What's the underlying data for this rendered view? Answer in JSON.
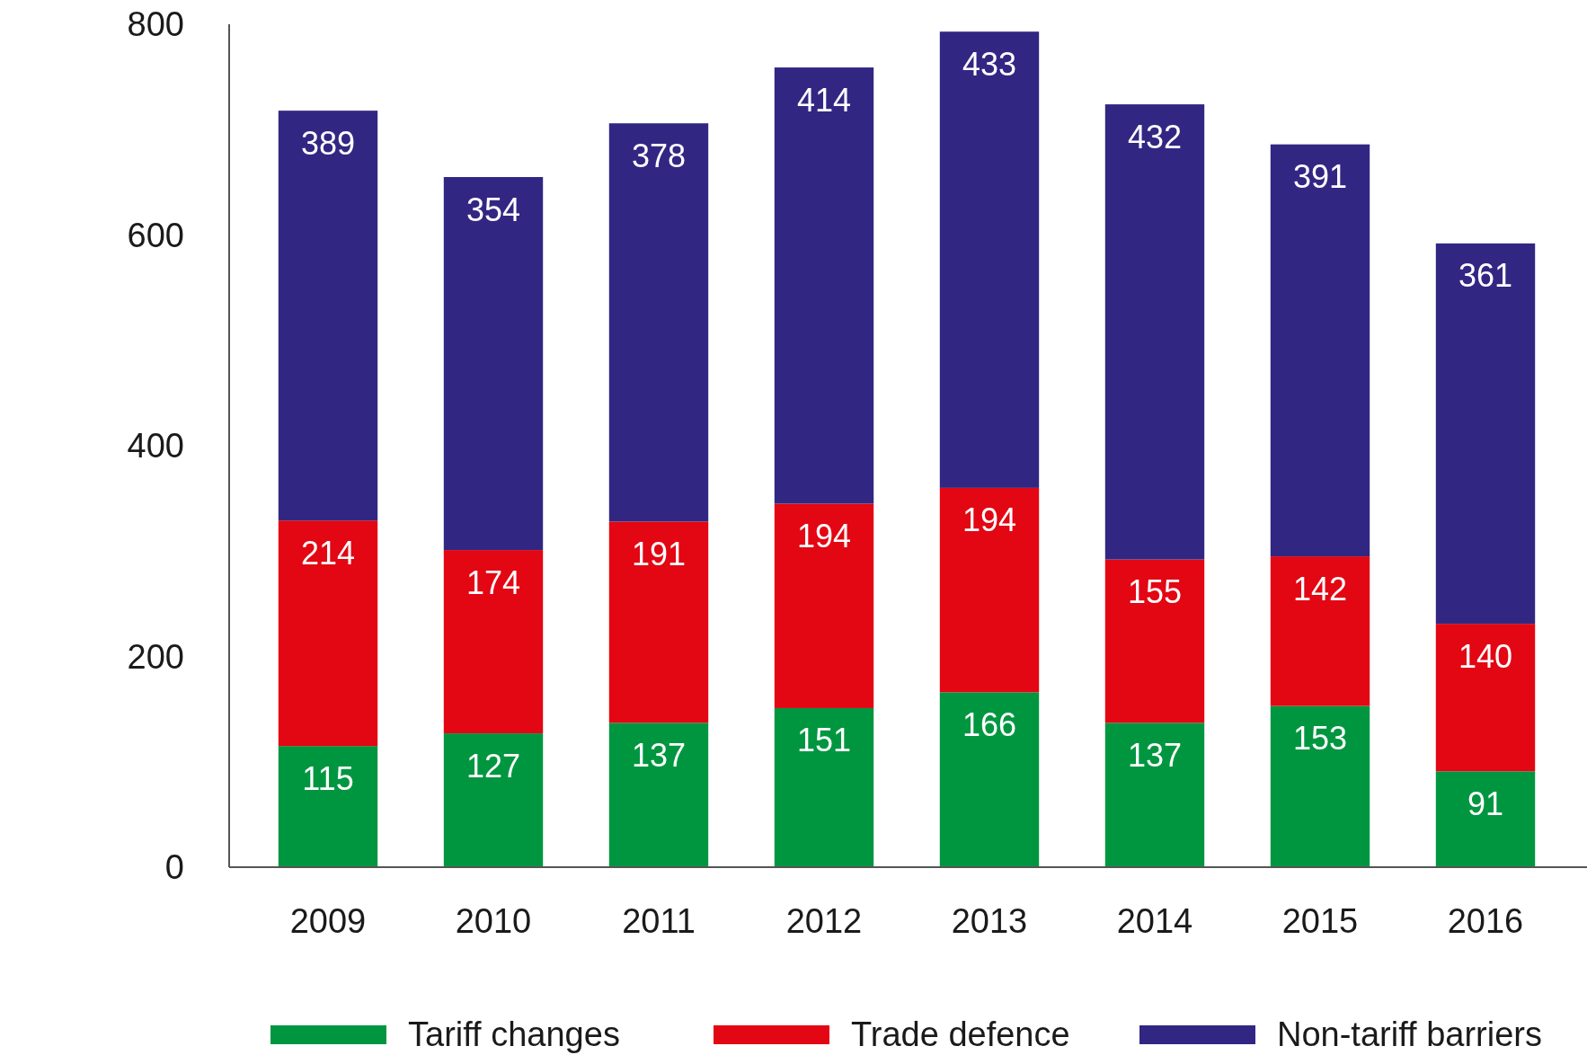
{
  "chart_data": {
    "type": "bar",
    "stacked": true,
    "categories": [
      "2009",
      "2010",
      "2011",
      "2012",
      "2013",
      "2014",
      "2015",
      "2016"
    ],
    "series": [
      {
        "name": "Tariff changes",
        "color": "#009640",
        "values": [
          115,
          127,
          137,
          151,
          166,
          137,
          153,
          91
        ]
      },
      {
        "name": "Trade defence",
        "color": "#e30613",
        "values": [
          214,
          174,
          191,
          194,
          194,
          155,
          142,
          140
        ]
      },
      {
        "name": "Non-tariff barriers",
        "color": "#312783",
        "values": [
          389,
          354,
          378,
          414,
          433,
          432,
          391,
          361
        ]
      }
    ],
    "ylim": [
      0,
      800
    ],
    "yticks": [
      0,
      200,
      400,
      600,
      800
    ],
    "grid": false,
    "legend": "bottom",
    "data_labels": true
  }
}
